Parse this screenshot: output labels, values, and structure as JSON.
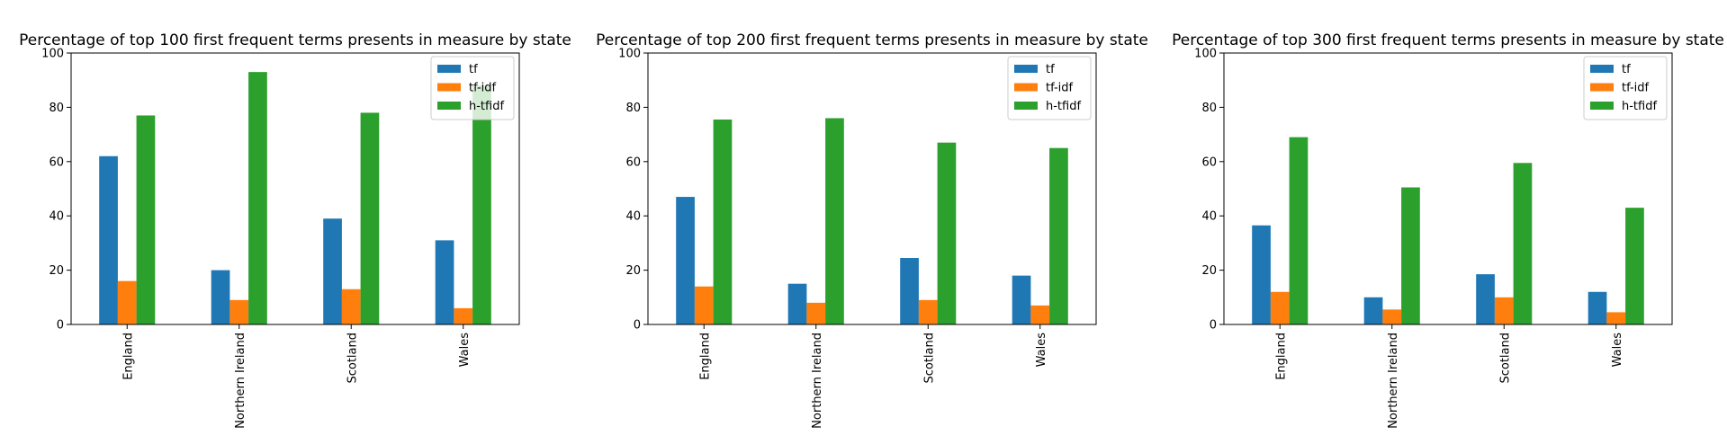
{
  "chart_data": [
    {
      "type": "bar",
      "title": "Percentage of top 100 first frequent terms presents in measure by state",
      "categories": [
        "England",
        "Northern Ireland",
        "Scotland",
        "Wales"
      ],
      "ylim": [
        0,
        100
      ],
      "yticks": [
        "0",
        "20",
        "40",
        "60",
        "80",
        "100"
      ],
      "grid": false,
      "legend": "top-right",
      "series": [
        {
          "name": "tf",
          "color": "#1f77b4",
          "values": [
            62,
            20,
            39,
            31
          ]
        },
        {
          "name": "tf-idf",
          "color": "#ff7f0e",
          "values": [
            16,
            9,
            13,
            6
          ]
        },
        {
          "name": "h-tfidf",
          "color": "#2ca02c",
          "values": [
            77,
            93,
            78,
            88
          ]
        }
      ]
    },
    {
      "type": "bar",
      "title": "Percentage of top 200 first frequent terms presents in measure by state",
      "categories": [
        "England",
        "Northern Ireland",
        "Scotland",
        "Wales"
      ],
      "ylim": [
        0,
        100
      ],
      "yticks": [
        "0",
        "20",
        "40",
        "60",
        "80",
        "100"
      ],
      "grid": false,
      "legend": "top-right",
      "series": [
        {
          "name": "tf",
          "color": "#1f77b4",
          "values": [
            47,
            15,
            24.5,
            18
          ]
        },
        {
          "name": "tf-idf",
          "color": "#ff7f0e",
          "values": [
            14,
            8,
            9,
            7
          ]
        },
        {
          "name": "h-tfidf",
          "color": "#2ca02c",
          "values": [
            75.5,
            76,
            67,
            65
          ]
        }
      ]
    },
    {
      "type": "bar",
      "title": "Percentage of top 300 first frequent terms presents in measure by state",
      "categories": [
        "England",
        "Northern Ireland",
        "Scotland",
        "Wales"
      ],
      "ylim": [
        0,
        100
      ],
      "yticks": [
        "0",
        "20",
        "40",
        "60",
        "80",
        "100"
      ],
      "grid": false,
      "legend": "top-right",
      "series": [
        {
          "name": "tf",
          "color": "#1f77b4",
          "values": [
            36.5,
            10,
            18.5,
            12
          ]
        },
        {
          "name": "tf-idf",
          "color": "#ff7f0e",
          "values": [
            12,
            5.5,
            10,
            4.5
          ]
        },
        {
          "name": "h-tfidf",
          "color": "#2ca02c",
          "values": [
            69,
            50.5,
            59.5,
            43
          ]
        }
      ]
    }
  ]
}
